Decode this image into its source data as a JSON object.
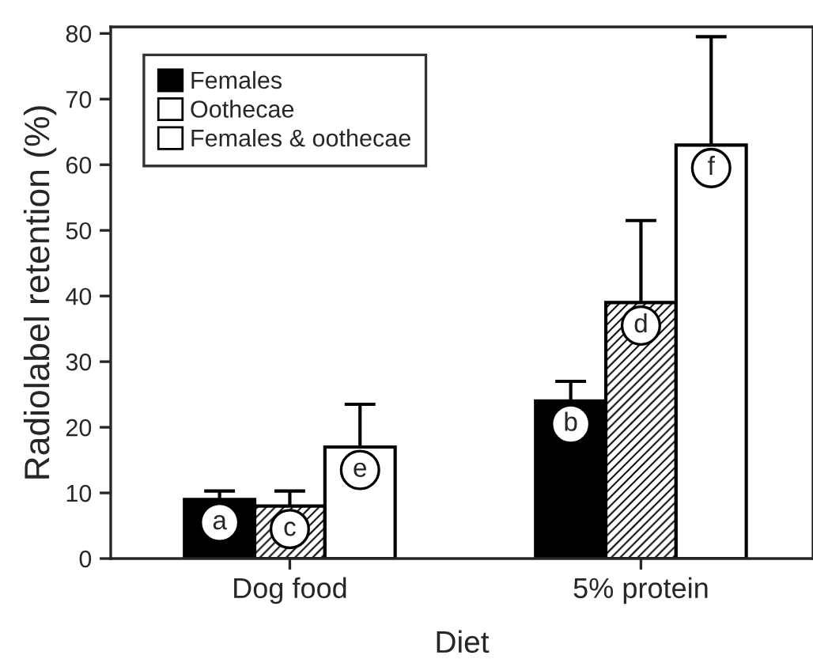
{
  "chart_data": {
    "type": "bar",
    "xlabel": "Diet",
    "ylabel": "Radiolabel retention (%)",
    "categories": [
      "Dog food",
      "5% protein"
    ],
    "series": [
      {
        "name": "Females",
        "color": "#000000",
        "values": [
          9,
          24
        ],
        "errors": [
          [
            9,
            10.3
          ],
          [
            24,
            27
          ]
        ],
        "value_labels": [
          "a",
          "b"
        ]
      },
      {
        "name": "Oothecae",
        "color": "#ffffff",
        "values": [
          8,
          39
        ],
        "errors": [
          [
            8,
            10.3
          ],
          [
            39,
            51.5
          ]
        ],
        "value_labels": [
          "c",
          "d"
        ]
      },
      {
        "name": "Females & oothecae",
        "color": "#ffffff",
        "values": [
          17,
          63
        ],
        "errors": [
          [
            17,
            23.5
          ],
          [
            63,
            79.5
          ]
        ],
        "value_labels": [
          "e",
          "f"
        ]
      }
    ],
    "ylim": [
      0,
      81
    ],
    "yticks": [
      0,
      10,
      20,
      30,
      40,
      50,
      60,
      70,
      80
    ],
    "grid": false,
    "legend": "top left"
  }
}
